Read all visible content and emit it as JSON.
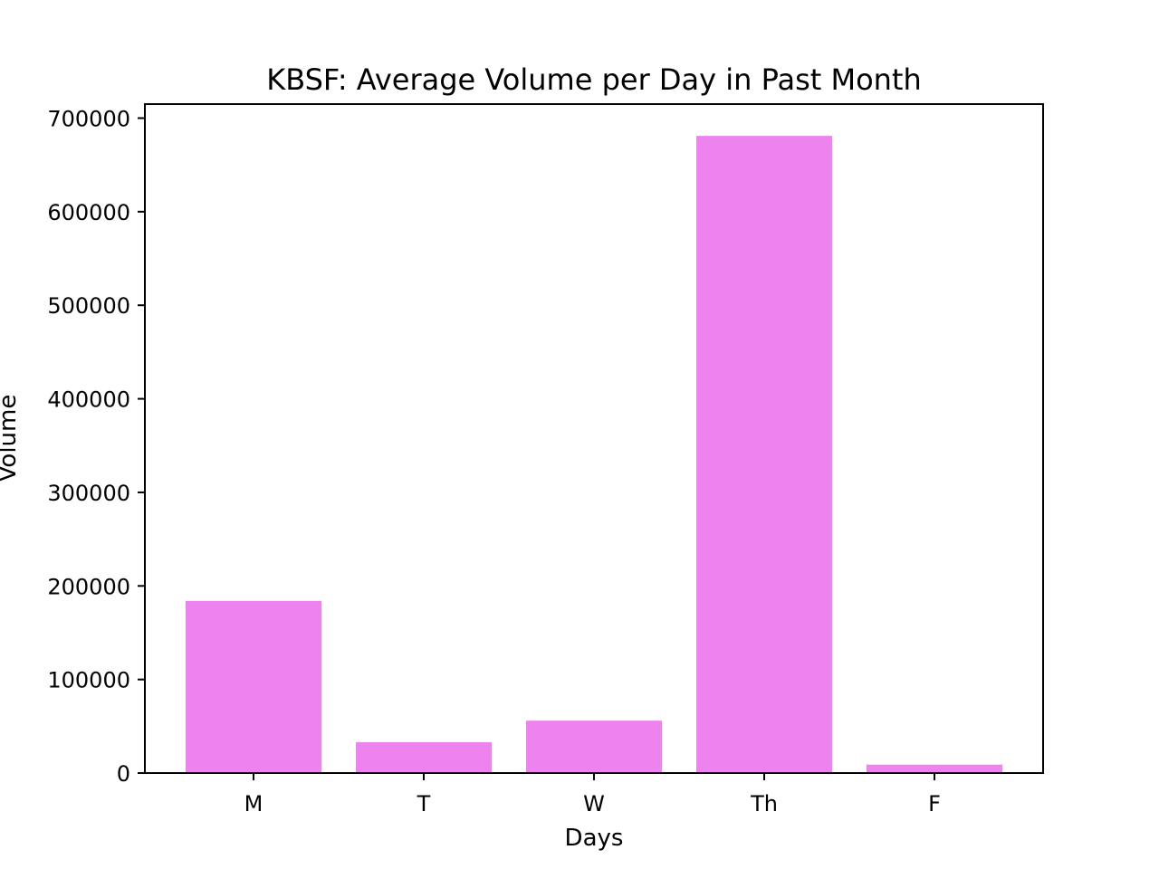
{
  "chart_data": {
    "type": "bar",
    "title": "KBSF: Average Volume per Day in Past Month",
    "xlabel": "Days",
    "ylabel": "Volume",
    "categories": [
      "M",
      "T",
      "W",
      "Th",
      "F"
    ],
    "values": [
      184000,
      33000,
      56000,
      681000,
      9000
    ],
    "ylim": [
      0,
      715000
    ],
    "yticks": [
      0,
      100000,
      200000,
      300000,
      400000,
      500000,
      600000,
      700000
    ],
    "ytick_labels": [
      "0",
      "100000",
      "200000",
      "300000",
      "400000",
      "500000",
      "600000",
      "700000"
    ],
    "grid": false,
    "legend": "none",
    "bar_color": "#ee82ee"
  }
}
